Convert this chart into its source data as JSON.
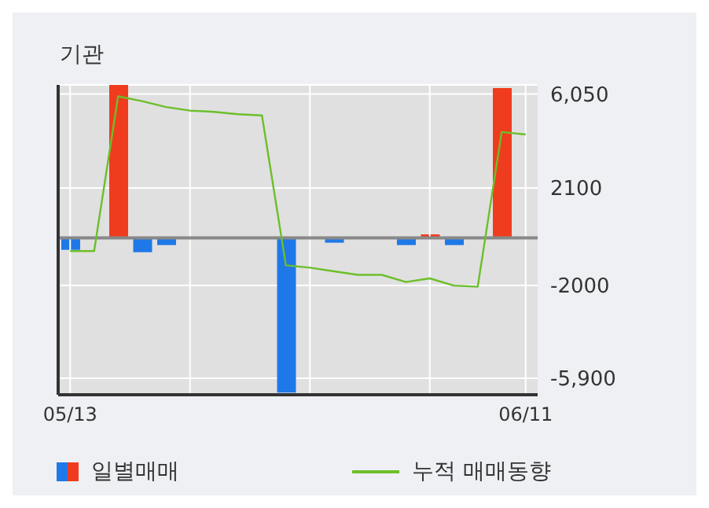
{
  "chart_data": {
    "type": "bar",
    "title": "기관",
    "categories": [
      "05/13",
      null,
      null,
      null,
      null,
      null,
      null,
      null,
      null,
      null,
      null,
      null,
      null,
      null,
      null,
      null,
      null,
      null,
      null,
      "06/11"
    ],
    "series": [
      {
        "name": "일별매매",
        "colors": [
          "#1f78e8",
          "#1f78e8",
          "#f03c1e",
          "#1f78e8",
          "#1f78e8",
          "#1f78e8",
          "#1f78e8",
          "#1f78e8",
          "#1f78e8",
          "#1f78e8",
          "#1f78e8",
          "#1f78e8",
          "#1f78e8",
          "#1f78e8",
          "#1f78e8",
          "#f03c1e",
          "#1f78e8",
          "#1f78e8",
          "#f03c1e",
          "#1f78e8"
        ],
        "values": [
          -500,
          null,
          6430,
          -600,
          -300,
          null,
          null,
          null,
          null,
          -6500,
          null,
          -200,
          null,
          null,
          -300,
          150,
          -300,
          null,
          6300,
          null
        ]
      },
      {
        "type": "line",
        "name": "누적 매매동향",
        "color": "#6cbf2a",
        "values": [
          -550,
          -550,
          5950,
          5750,
          5500,
          5350,
          5300,
          5200,
          5150,
          -1150,
          -1250,
          -1400,
          -1550,
          -1550,
          -1850,
          -1700,
          -2000,
          -2050,
          4450,
          4350
        ]
      }
    ],
    "ylim": [
      -6590,
      6430
    ],
    "yticks": [
      {
        "value": 6050,
        "label": "6,050"
      },
      2100,
      -2000,
      {
        "value": -5900,
        "label": "-5,900"
      }
    ],
    "ref_lines": [
      {
        "axis": "y",
        "value": 0,
        "color": "#888888"
      }
    ],
    "grid": true,
    "legend": "bottom",
    "marker": "none"
  }
}
